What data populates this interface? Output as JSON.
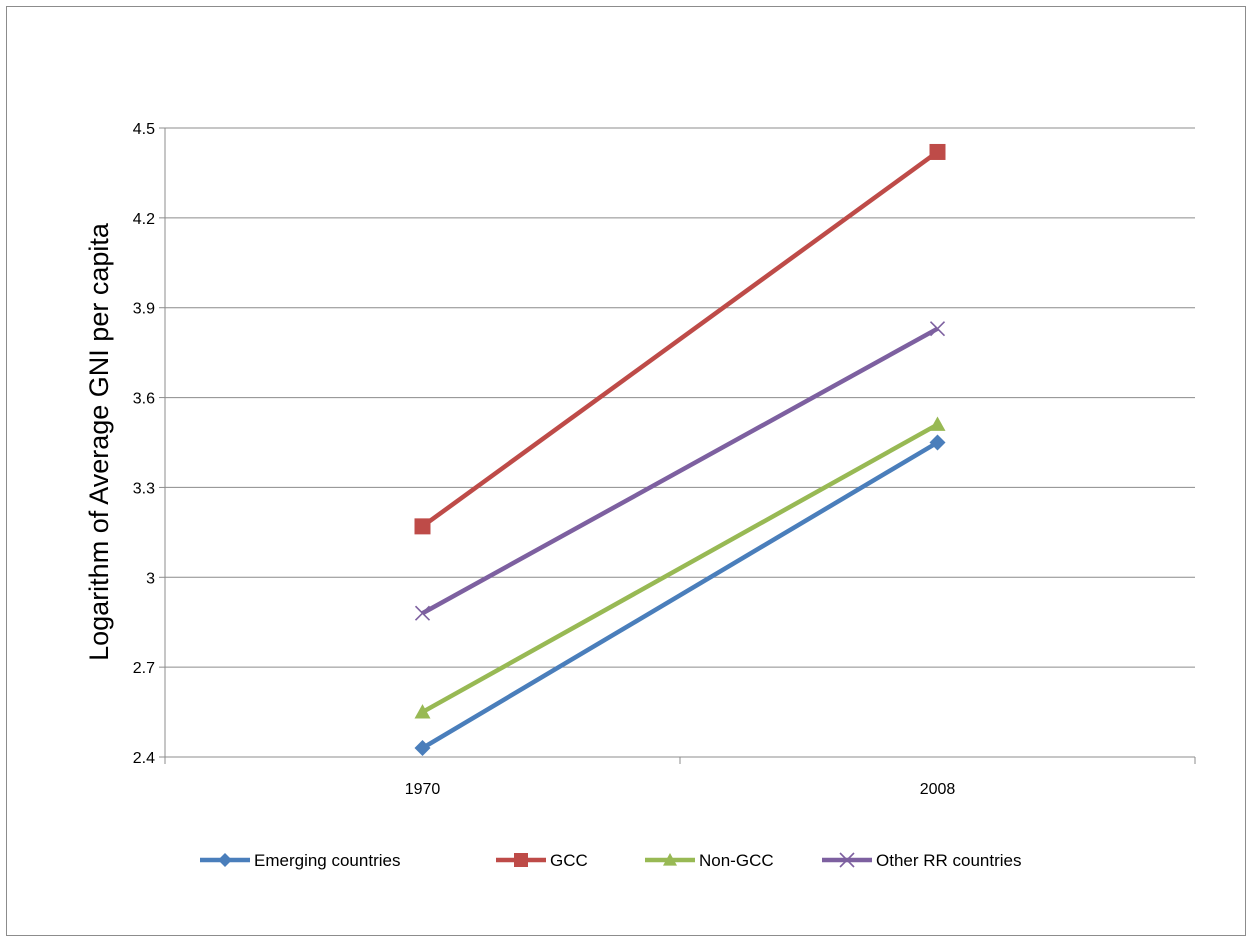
{
  "chart_data": {
    "type": "line",
    "title": "",
    "xlabel": "",
    "ylabel": "Logarithm of  Average GNI per capita",
    "categories": [
      "1970",
      "2008"
    ],
    "ylim": [
      2.4,
      4.5
    ],
    "yticks": [
      "2.4",
      "2.7",
      "3",
      "3.3",
      "3.6",
      "3.9",
      "4.2",
      "4.5"
    ],
    "grid": true,
    "legend_position": "bottom",
    "series": [
      {
        "name": "Emerging countries",
        "values": [
          2.43,
          3.45
        ],
        "color": "#4a7ebb",
        "marker": "diamond"
      },
      {
        "name": "GCC",
        "values": [
          3.17,
          4.42
        ],
        "color": "#be4b48",
        "marker": "square"
      },
      {
        "name": "Non-GCC",
        "values": [
          2.55,
          3.51
        ],
        "color": "#98b954",
        "marker": "triangle"
      },
      {
        "name": "Other RR countries",
        "values": [
          2.88,
          3.83
        ],
        "color": "#7d60a0",
        "marker": "x"
      }
    ]
  }
}
